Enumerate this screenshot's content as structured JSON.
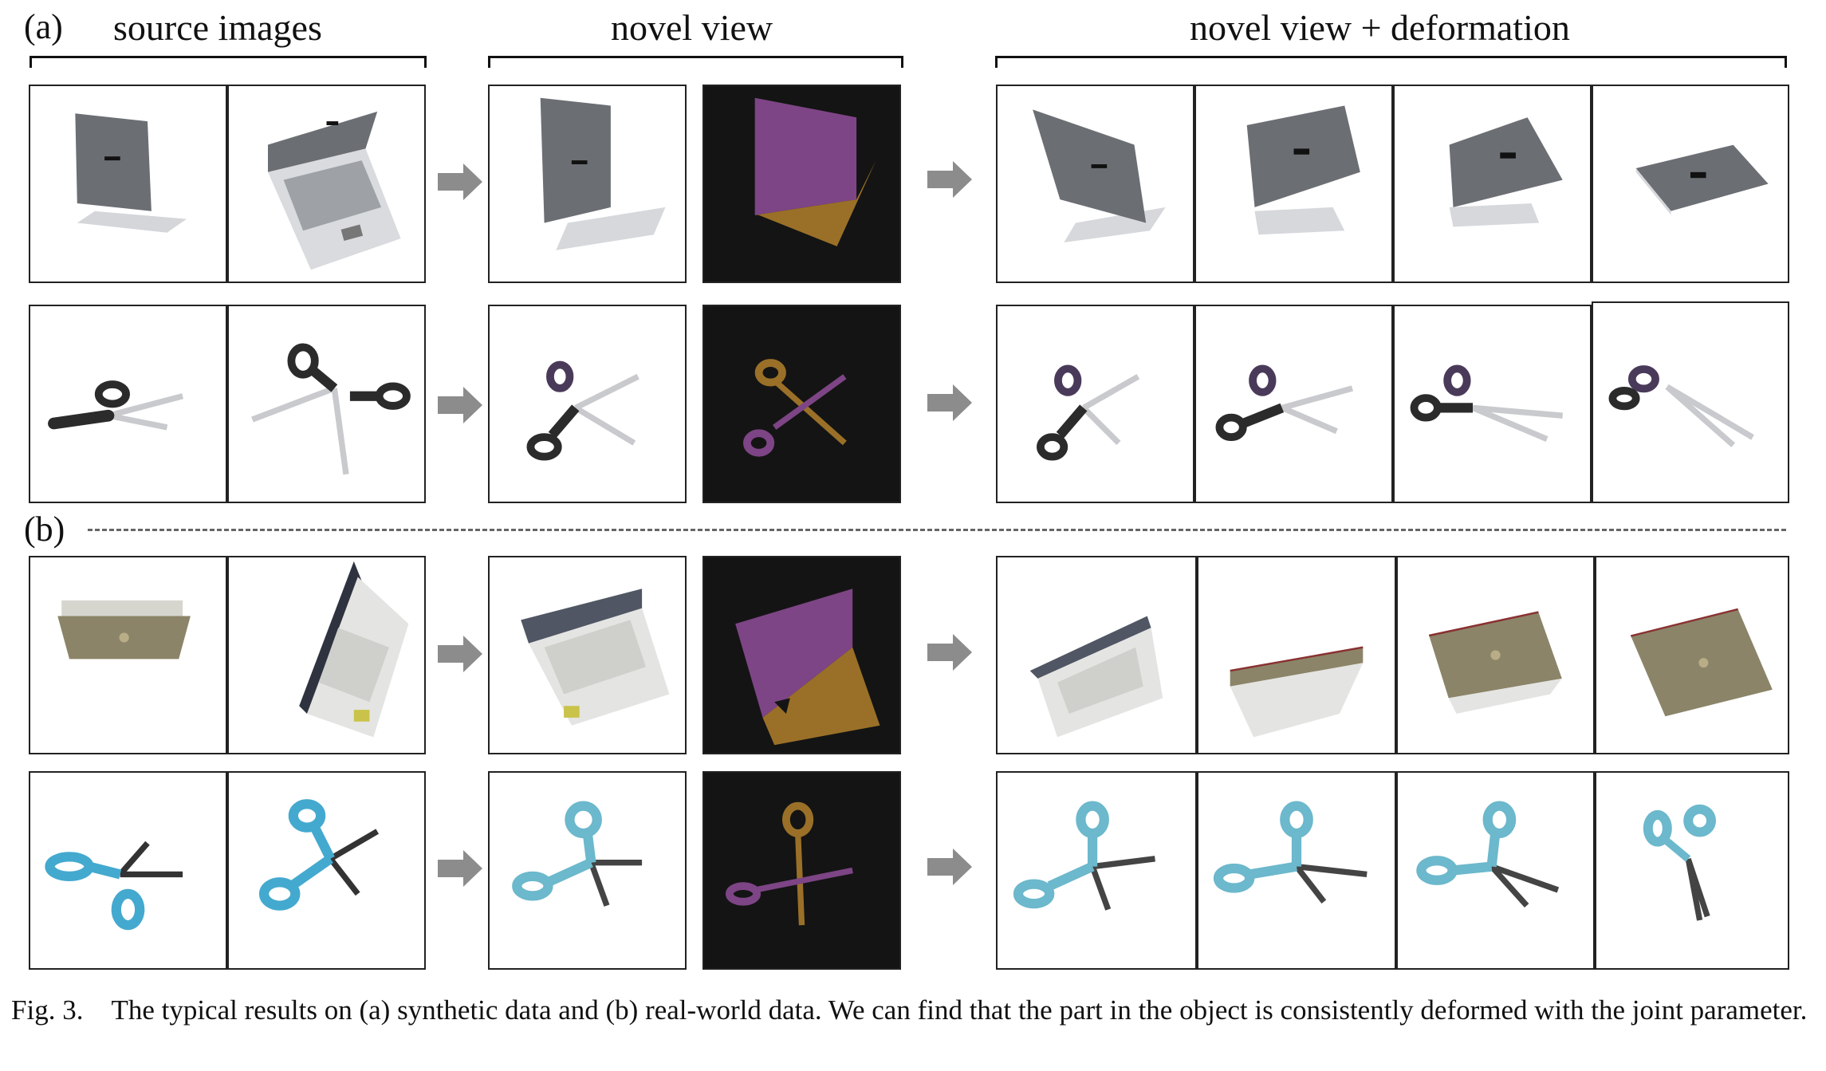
{
  "figure": {
    "section_a_label": "(a)",
    "section_b_label": "(b)",
    "headers": {
      "source": "source images",
      "novel": "novel view",
      "deform": "novel view + deformation"
    },
    "caption": "Fig. 3. The typical results on (a) synthetic data and (b) real-world data. We can find that the part in the object is consistently deformed with the joint parameter."
  },
  "rows": [
    {
      "section": "a",
      "object": "laptop",
      "style": "synthetic"
    },
    {
      "section": "a",
      "object": "scissors",
      "style": "synthetic"
    },
    {
      "section": "b",
      "object": "laptop",
      "style": "real"
    },
    {
      "section": "b",
      "object": "scissors",
      "style": "real"
    }
  ],
  "colors": {
    "segmentation_part_1": "#7d4585",
    "segmentation_part_2": "#9a7028",
    "segmentation_background": "#141414",
    "arrow": "#8c8c8c",
    "laptop_synthetic": "#6b6e73",
    "laptop_real_lid": "#8b8468",
    "scissors_handle_synthetic": "#2b2b2b",
    "scissors_handle_real": "#44a9cf"
  },
  "icons": [
    "right-arrow-icon"
  ]
}
